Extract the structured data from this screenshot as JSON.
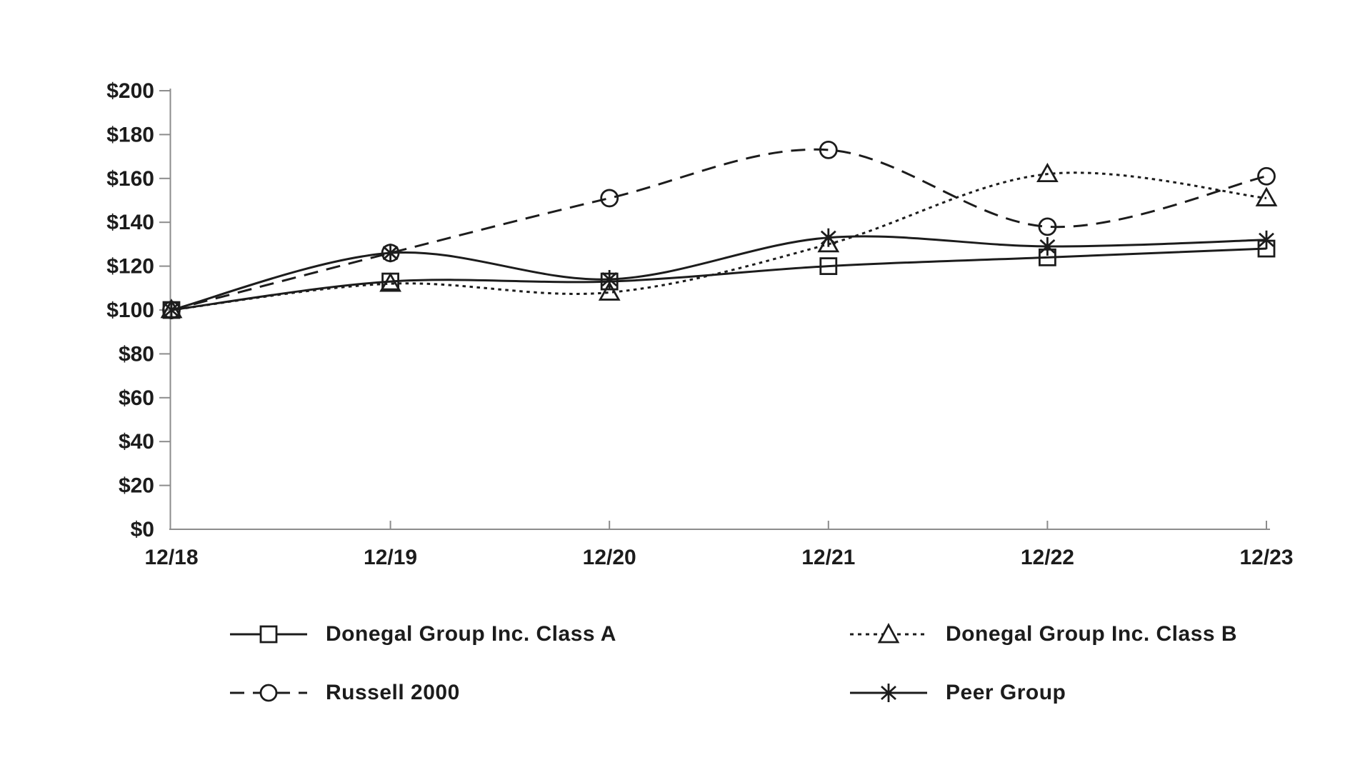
{
  "chart_data": {
    "type": "line",
    "title": "",
    "categories": [
      "12/18",
      "12/19",
      "12/20",
      "12/21",
      "12/22",
      "12/23"
    ],
    "series": [
      {
        "name": "Donegal Group Inc. Class A",
        "marker": "square",
        "line_style": "solid",
        "values": [
          100,
          113,
          113,
          120,
          124,
          128
        ]
      },
      {
        "name": "Donegal Group Inc. Class B",
        "marker": "triangle",
        "line_style": "dotted",
        "values": [
          100,
          112,
          108,
          130,
          162,
          151
        ]
      },
      {
        "name": "Russell 2000",
        "marker": "circle",
        "line_style": "dashed",
        "values": [
          100,
          126,
          151,
          173,
          138,
          161
        ]
      },
      {
        "name": "Peer Group",
        "marker": "star",
        "line_style": "solid",
        "values": [
          100,
          126,
          114,
          133,
          129,
          132
        ]
      }
    ],
    "xlabel": "",
    "ylabel": "",
    "ylim": [
      0,
      200
    ],
    "ytick_step": 20,
    "y_tick_labels": [
      "$0",
      "$20",
      "$40",
      "$60",
      "$80",
      "$100",
      "$120",
      "$140",
      "$160",
      "$180",
      "$200"
    ],
    "grid": false,
    "smooth_lines": true,
    "legend_position": "bottom-two-columns",
    "colors": {
      "line": "#1c1c1c",
      "axis": "#8c8c8c",
      "text": "#1c1c1c",
      "background": "#ffffff"
    }
  }
}
